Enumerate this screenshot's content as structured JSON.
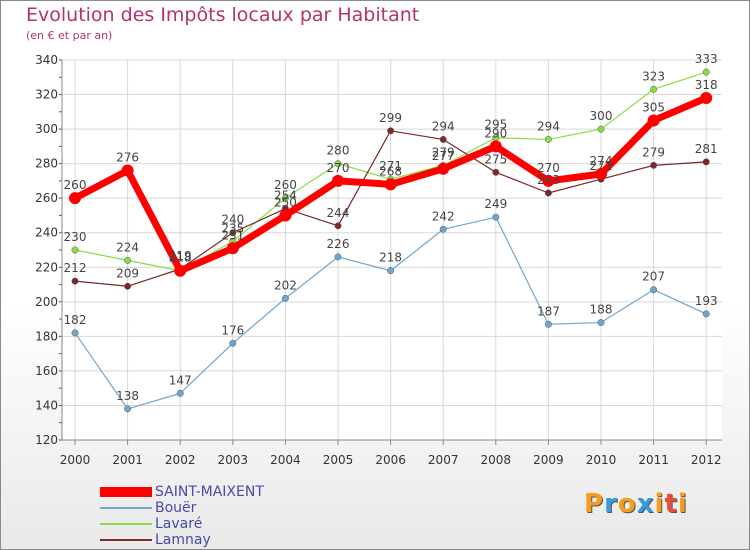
{
  "chart_data": {
    "type": "line",
    "title": "Evolution des Impôts locaux par Habitant",
    "subtitle": "(en € et par an)",
    "x": [
      "2000",
      "2001",
      "2002",
      "2003",
      "2004",
      "2005",
      "2006",
      "2007",
      "2008",
      "2009",
      "2010",
      "2011",
      "2012"
    ],
    "ylim": [
      120,
      340
    ],
    "yticks": [
      120,
      140,
      160,
      180,
      200,
      220,
      240,
      260,
      280,
      300,
      320,
      340
    ],
    "grid": true,
    "legend_position": "bottom-left",
    "series": [
      {
        "name": "SAINT-MAIXENT",
        "color": "#ff0000",
        "values": [
          260,
          276,
          218,
          231,
          250,
          270,
          268,
          277,
          290,
          270,
          274,
          305,
          318
        ]
      },
      {
        "name": "Bouër",
        "color": "#6fa6cd",
        "values": [
          182,
          138,
          147,
          176,
          202,
          226,
          218,
          242,
          249,
          187,
          188,
          207,
          193
        ]
      },
      {
        "name": "Lavaré",
        "color": "#88dd44",
        "values": [
          230,
          224,
          218,
          235,
          260,
          280,
          271,
          279,
          295,
          294,
          300,
          323,
          333
        ]
      },
      {
        "name": "Lamnay",
        "color": "#7a2a2a",
        "values": [
          212,
          209,
          219,
          240,
          254,
          244,
          299,
          294,
          275,
          263,
          271,
          279,
          281
        ]
      }
    ],
    "data_labels": [
      [
        "260",
        "276",
        "218",
        "231",
        "250",
        "270",
        "268",
        "277",
        "290",
        "270",
        "274",
        "305",
        "318"
      ],
      [
        "182",
        "138",
        "147",
        "176",
        "202",
        "226",
        "218",
        "242",
        "249",
        "187",
        "188",
        "207",
        "193"
      ],
      [
        "230",
        "224",
        "218",
        "235",
        "260",
        "280",
        "271",
        "279",
        "295",
        "294",
        "300",
        "323",
        "333"
      ],
      [
        "212",
        "209",
        "219",
        "240",
        "254",
        "244",
        "299",
        "294",
        "275",
        "263",
        "271",
        "279",
        "281"
      ]
    ]
  },
  "logo": {
    "letters": [
      "P",
      "r",
      "o",
      "x",
      "i",
      "t",
      "i"
    ],
    "colors": [
      "#f39c1e",
      "#3a9ad9",
      "#f39c1e",
      "#3a9ad9",
      "#f39c1e",
      "#e84c3d",
      "#f39c1e"
    ]
  }
}
